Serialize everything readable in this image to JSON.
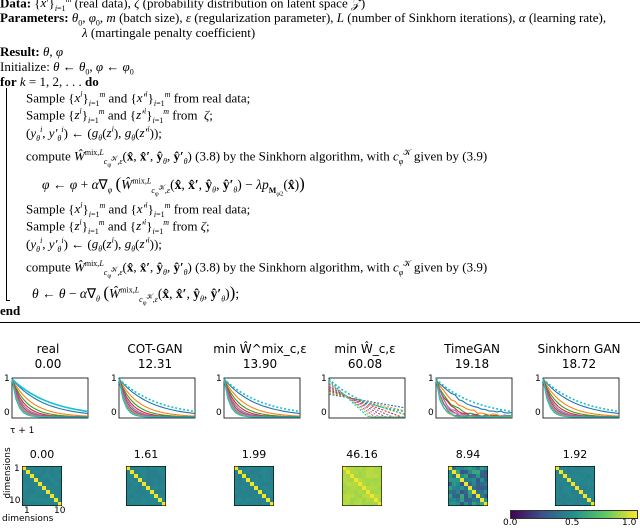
{
  "algorithm": {
    "data_line": "Data: {x^i}_{i=1}^m (real data), ζ (probability distribution on latent space Z)",
    "params_label": "Parameters:",
    "params_line1": "θ₀, φ₀, m (batch size), ε (regularization parameter), L (number of Sinkhorn iterations), α (learning rate),",
    "params_line2": "λ (martingale penalty coefficient)",
    "result_label": "Result:",
    "result_value": "θ, φ",
    "init_label": "Initialize:",
    "init_value": "θ ← θ₀, φ ← φ₀",
    "for_kw": "for",
    "for_expr": "k = 1, 2, . . .",
    "do_kw": "do",
    "end_kw": "end",
    "steps": [
      "Sample {x^i}_{i=1}^m and {x'^i}_{i=1}^m from real data;",
      "Sample {z^i}_{i=1}^m and {z'^i}_{i=1}^m from ζ;",
      "(y_θ^i, y'_θ^i) ← (g_θ(z^i), g_θ(z'^i));",
      "compute Ŵ^{mix,L}_{c_φ^K,ε}(x̂, x̂', ŷ_θ, ŷ'_θ) (3.8) by the Sinkhorn algorithm, with c_φ^K given by (3.9)",
      "φ ← φ + α∇_φ ( Ŵ^{mix,L}_{c_φ^K,ε}(x̂, x̂', ŷ_θ, ŷ'_θ) − λ p_{M_φ2}(x̂) )",
      "Sample {x^i}_{i=1}^m and {x'^i}_{i=1}^m from real data;",
      "Sample {z^i}_{i=1}^m and {z'^i}_{i=1}^m from ζ;",
      "(y_θ^i, y'_θ^i) ← (g_θ(z^i), g_θ(z'^i));",
      "compute Ŵ^{mix,L}_{c_φ^K,ε}(x̂, x̂', ŷ_θ, ŷ'_θ) (3.8) by the Sinkhorn algorithm, with c_φ^K given by (3.9)",
      "θ ← θ − α∇_θ ( Ŵ^{mix,L}_{c_φ^K,ε}(x̂, x̂', ŷ_θ, ŷ'_θ) );"
    ]
  },
  "figure": {
    "panels": [
      {
        "title": "real",
        "score": "0.00",
        "heat_score": "0.00",
        "heat_style": "real"
      },
      {
        "title": "COT-GAN",
        "score": "12.31",
        "heat_score": "1.61",
        "heat_style": "good"
      },
      {
        "title": "min Ŵ^mix_c,ε",
        "score": "13.90",
        "heat_score": "1.99",
        "heat_style": "good"
      },
      {
        "title": "min Ŵ_c,ε",
        "score": "60.08",
        "heat_score": "46.16",
        "heat_style": "yellow"
      },
      {
        "title": "TimeGAN",
        "score": "19.18",
        "heat_score": "8.94",
        "heat_style": "noisy"
      },
      {
        "title": "Sinkhorn GAN",
        "score": "18.72",
        "heat_score": "1.92",
        "heat_style": "good"
      }
    ],
    "y_tick_top": "1",
    "y_tick_bottom": "0",
    "x_label": "τ + 1",
    "heat_ylabel": "dimensions",
    "heat_xlabel": "dimensions",
    "heat_tick_1": "1",
    "heat_tick_10": "10",
    "colorbar_ticks": [
      "0.0",
      "0.5",
      "1.0"
    ],
    "colors": {
      "viridis_low": "#440154",
      "viridis_mid": "#21918c",
      "viridis_high": "#fde725",
      "line_cyan": "#17becf"
    }
  }
}
